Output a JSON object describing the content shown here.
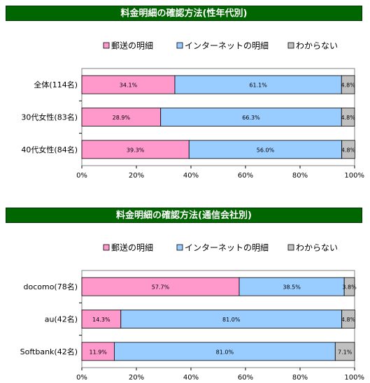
{
  "chart_data": [
    {
      "type": "bar",
      "stacked": true,
      "orientation": "horizontal",
      "title": "料金明細の確認方法(性年代別)",
      "categories": [
        "全体(114名)",
        "30代女性(83名)",
        "40代女性(84名)"
      ],
      "series": [
        {
          "name": "郵送の明細",
          "color": "#FF99CC",
          "values": [
            34.1,
            28.9,
            39.3
          ],
          "labels": [
            "34.1%",
            "28.9%",
            "39.3%"
          ]
        },
        {
          "name": "インターネットの明細",
          "color": "#99CCFF",
          "values": [
            61.1,
            66.3,
            56.0
          ],
          "labels": [
            "61.1%",
            "66.3%",
            "56.0%"
          ]
        },
        {
          "name": "わからない",
          "color": "#C0C0C0",
          "values": [
            4.8,
            4.8,
            4.8
          ],
          "labels": [
            "4.8%",
            "4.8%",
            "4.8%"
          ]
        }
      ],
      "x_ticks": [
        "0%",
        "20%",
        "40%",
        "60%",
        "80%",
        "100%"
      ],
      "xlim": [
        0,
        100
      ],
      "legend_position": "top",
      "grid": false
    },
    {
      "type": "bar",
      "stacked": true,
      "orientation": "horizontal",
      "title": "料金明細の確認方法(通信会社別)",
      "categories": [
        "docomo(78名)",
        "au(42名)",
        "Softbank(42名)"
      ],
      "series": [
        {
          "name": "郵送の明細",
          "color": "#FF99CC",
          "values": [
            57.7,
            14.3,
            11.9
          ],
          "labels": [
            "57.7%",
            "14.3%",
            "11.9%"
          ]
        },
        {
          "name": "インターネットの明細",
          "color": "#99CCFF",
          "values": [
            38.5,
            81.0,
            81.0
          ],
          "labels": [
            "38.5%",
            "81.0%",
            "81.0%"
          ]
        },
        {
          "name": "わからない",
          "color": "#C0C0C0",
          "values": [
            3.8,
            4.8,
            7.1
          ],
          "labels": [
            "3.8%",
            "4.8%",
            "7.1%"
          ]
        }
      ],
      "x_ticks": [
        "0%",
        "20%",
        "40%",
        "60%",
        "80%",
        "100%"
      ],
      "xlim": [
        0,
        100
      ],
      "legend_position": "top",
      "grid": false
    }
  ]
}
